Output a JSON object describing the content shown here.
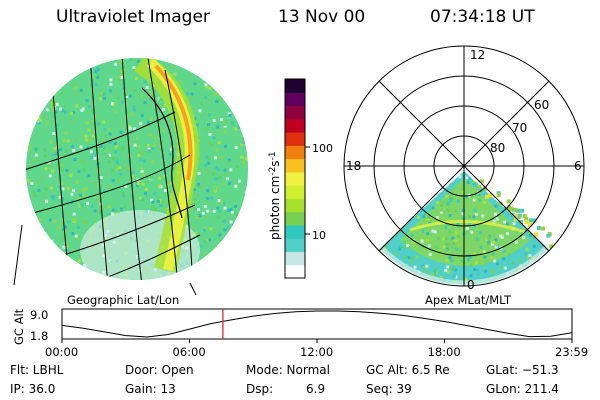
{
  "header": {
    "instrument": "Ultraviolet Imager",
    "date": "13 Nov 00",
    "time": "07:34:18 UT"
  },
  "colorbar": {
    "label": "photon cm",
    "label_exp1": "-2",
    "label_mid": "s",
    "label_exp2": "-1",
    "ticks": [
      "100",
      "10"
    ],
    "colors": [
      "#ffffff",
      "#c8e6e6",
      "#50d0c8",
      "#30c8c0",
      "#78d050",
      "#a8e030",
      "#d0f030",
      "#f0f040",
      "#f8c020",
      "#f08010",
      "#e03010",
      "#c00020",
      "#900040",
      "#600060",
      "#200030"
    ]
  },
  "geo_panel": {
    "label": "Geographic Lat/Lon"
  },
  "polar_panel": {
    "label": "Apex MLat/MLT",
    "mlt_labels": {
      "top": "12",
      "left": "18",
      "right": "6",
      "bottom": "0"
    },
    "lat_labels": [
      "60",
      "70",
      "80"
    ]
  },
  "altitude_plot": {
    "ylabel": "GC Alt",
    "yticks": [
      "9.0",
      "1.8"
    ],
    "xticks": [
      "00:00",
      "06:00",
      "12:00",
      "18:00",
      "23:59"
    ],
    "current_time_hours": 7.57,
    "orbit": {
      "hours": [
        0,
        1,
        2,
        3,
        4,
        5,
        6,
        7,
        8,
        9,
        10,
        11,
        12,
        13,
        14,
        15,
        16,
        17,
        18,
        19,
        20,
        21,
        22,
        23,
        23.98
      ],
      "alt_re": [
        5.0,
        4.2,
        3.2,
        2.2,
        1.8,
        2.5,
        4.0,
        5.5,
        6.6,
        7.6,
        8.3,
        8.8,
        9.0,
        9.0,
        8.8,
        8.4,
        7.8,
        7.0,
        6.1,
        5.0,
        3.9,
        2.8,
        1.9,
        2.0,
        3.0
      ]
    }
  },
  "info": {
    "flt": "Flt: LBHL",
    "ip": "IP: 36.0",
    "door": "Door: Open",
    "gain": "Gain: 13",
    "mode": "Mode: Normal",
    "dsp_label": "Dsp:",
    "dsp_value": "6.9",
    "gcalt": "GC Alt: 6.5 Re",
    "seq": "Seq: 39",
    "glat": "GLat: −51.3",
    "glon": "GLon: 211.4"
  }
}
